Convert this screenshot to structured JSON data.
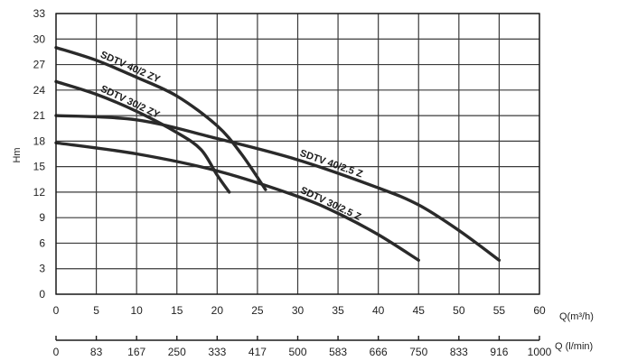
{
  "chart_data": {
    "type": "line",
    "ylabel": "Hm",
    "xlabel": "Q(m³/h)",
    "x2label": "Q (l/min)",
    "xlim": [
      0,
      60
    ],
    "ylim": [
      0,
      33
    ],
    "x_ticks": [
      "0",
      "5",
      "10",
      "15",
      "20",
      "25",
      "30",
      "35",
      "40",
      "45",
      "50",
      "55",
      "60"
    ],
    "y_ticks": [
      "0",
      "3",
      "6",
      "9",
      "12",
      "15",
      "18",
      "21",
      "24",
      "27",
      "30",
      "33"
    ],
    "x2_ticks": [
      "0",
      "83",
      "167",
      "250",
      "333",
      "417",
      "500",
      "583",
      "666",
      "750",
      "833",
      "916",
      "1000"
    ],
    "grid": true,
    "series": [
      {
        "name": "SDTV 40/2 ZY",
        "x": [
          0,
          5,
          10,
          15,
          20,
          23,
          26
        ],
        "y": [
          29,
          27.5,
          25.5,
          23.3,
          19.8,
          16.5,
          12.3
        ]
      },
      {
        "name": "SDTV 30/2 ZY",
        "x": [
          0,
          5,
          10,
          15,
          18,
          20,
          21.5
        ],
        "y": [
          25,
          23.5,
          21.5,
          19,
          17,
          14,
          12
        ]
      },
      {
        "name": "SDTV 40/2.5 Z",
        "x": [
          0,
          10,
          20,
          30,
          40,
          45,
          50,
          55
        ],
        "y": [
          21,
          20.5,
          18.3,
          15.8,
          12.5,
          10.5,
          7.5,
          4
        ]
      },
      {
        "name": "SDTV 30/2.5 Z",
        "x": [
          0,
          10,
          20,
          30,
          35,
          40,
          45
        ],
        "y": [
          17.8,
          16.5,
          14.5,
          11.5,
          9.5,
          7,
          4
        ]
      }
    ]
  }
}
